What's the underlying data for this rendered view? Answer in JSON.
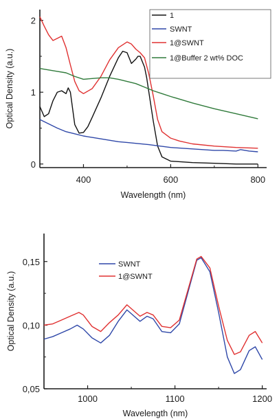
{
  "chart_data": [
    {
      "type": "line",
      "title": "",
      "xlabel": "Wavelength (nm)",
      "ylabel": "Optical Density (a.u.)",
      "xlim": [
        300,
        820
      ],
      "ylim": [
        -0.05,
        2.15
      ],
      "xticks": [
        400,
        600,
        800
      ],
      "xtick_labels": [
        "400",
        "600",
        "800"
      ],
      "yticks": [
        0,
        1,
        2
      ],
      "ytick_labels": [
        "0",
        "1",
        "2"
      ],
      "grid": false,
      "legend": "top-right",
      "series": [
        {
          "name": "1",
          "color": "#111111",
          "x": [
            300,
            310,
            320,
            330,
            340,
            350,
            355,
            360,
            365,
            370,
            380,
            390,
            400,
            410,
            420,
            440,
            460,
            480,
            490,
            500,
            510,
            520,
            525,
            530,
            540,
            545,
            550,
            560,
            570,
            580,
            600,
            650,
            700,
            750,
            800
          ],
          "values": [
            0.8,
            0.66,
            0.7,
            0.88,
            1.0,
            1.02,
            1.0,
            0.98,
            1.06,
            1.0,
            0.55,
            0.43,
            0.44,
            0.52,
            0.65,
            0.92,
            1.22,
            1.48,
            1.57,
            1.55,
            1.4,
            1.46,
            1.5,
            1.5,
            1.35,
            1.2,
            1.0,
            0.6,
            0.25,
            0.1,
            0.04,
            0.02,
            0.01,
            0.0,
            0.0
          ]
        },
        {
          "name": "SWNT",
          "color": "#2e47a8",
          "x": [
            300,
            320,
            340,
            360,
            380,
            400,
            420,
            450,
            480,
            500,
            550,
            600,
            650,
            700,
            720,
            750,
            760,
            780,
            800
          ],
          "values": [
            0.62,
            0.56,
            0.5,
            0.45,
            0.42,
            0.39,
            0.37,
            0.34,
            0.31,
            0.3,
            0.27,
            0.23,
            0.21,
            0.19,
            0.19,
            0.18,
            0.2,
            0.18,
            0.17
          ]
        },
        {
          "name": "1@SWNT",
          "color": "#e03030",
          "x": [
            300,
            310,
            320,
            330,
            340,
            350,
            360,
            370,
            380,
            390,
            400,
            420,
            440,
            460,
            480,
            500,
            510,
            520,
            530,
            540,
            550,
            560,
            570,
            580,
            600,
            620,
            650,
            700,
            750,
            800
          ],
          "values": [
            2.05,
            1.92,
            1.8,
            1.72,
            1.75,
            1.78,
            1.62,
            1.38,
            1.15,
            1.02,
            0.98,
            1.05,
            1.22,
            1.45,
            1.62,
            1.7,
            1.67,
            1.6,
            1.55,
            1.48,
            1.25,
            0.95,
            0.62,
            0.45,
            0.36,
            0.32,
            0.28,
            0.25,
            0.23,
            0.22
          ]
        },
        {
          "name": "1@Buffer 2 wt% DOC",
          "color": "#2f7a3a",
          "x": [
            300,
            320,
            340,
            360,
            380,
            400,
            420,
            440,
            460,
            480,
            500,
            520,
            540,
            560,
            580,
            600,
            650,
            700,
            750,
            800
          ],
          "values": [
            1.33,
            1.31,
            1.29,
            1.27,
            1.22,
            1.18,
            1.19,
            1.2,
            1.2,
            1.18,
            1.15,
            1.12,
            1.07,
            1.02,
            0.98,
            0.94,
            0.85,
            0.77,
            0.7,
            0.63
          ]
        }
      ]
    },
    {
      "type": "line",
      "title": "",
      "xlabel": "Wavelength (nm)",
      "ylabel": "Optical Density (a.u.)",
      "xlim": [
        950,
        1205
      ],
      "ylim": [
        0.05,
        0.172
      ],
      "xticks": [
        1000,
        1100,
        1200
      ],
      "xtick_labels": [
        "1000",
        "1100",
        "1200"
      ],
      "yticks": [
        0.05,
        0.1,
        0.15
      ],
      "ytick_labels": [
        "0,05",
        "0,10",
        "0,15"
      ],
      "grid": false,
      "legend": "top-left",
      "series": [
        {
          "name": "SWNT",
          "color": "#2e47a8",
          "x": [
            950,
            960,
            970,
            980,
            988,
            995,
            1005,
            1015,
            1025,
            1035,
            1045,
            1055,
            1060,
            1068,
            1075,
            1085,
            1095,
            1105,
            1115,
            1125,
            1130,
            1140,
            1150,
            1160,
            1168,
            1175,
            1185,
            1192,
            1200
          ],
          "values": [
            0.089,
            0.091,
            0.094,
            0.097,
            0.1,
            0.097,
            0.09,
            0.086,
            0.092,
            0.103,
            0.112,
            0.106,
            0.103,
            0.107,
            0.105,
            0.095,
            0.094,
            0.101,
            0.126,
            0.151,
            0.153,
            0.142,
            0.11,
            0.075,
            0.062,
            0.065,
            0.08,
            0.083,
            0.073
          ]
        },
        {
          "name": "1@SWNT",
          "color": "#e03030",
          "x": [
            950,
            960,
            970,
            980,
            990,
            995,
            1005,
            1015,
            1025,
            1035,
            1045,
            1055,
            1060,
            1068,
            1075,
            1085,
            1095,
            1105,
            1115,
            1125,
            1130,
            1140,
            1150,
            1160,
            1168,
            1175,
            1185,
            1192,
            1200
          ],
          "values": [
            0.1,
            0.101,
            0.104,
            0.107,
            0.11,
            0.108,
            0.099,
            0.095,
            0.102,
            0.108,
            0.116,
            0.11,
            0.107,
            0.11,
            0.108,
            0.099,
            0.098,
            0.104,
            0.128,
            0.152,
            0.154,
            0.145,
            0.115,
            0.088,
            0.077,
            0.079,
            0.092,
            0.095,
            0.086
          ]
        }
      ]
    }
  ]
}
